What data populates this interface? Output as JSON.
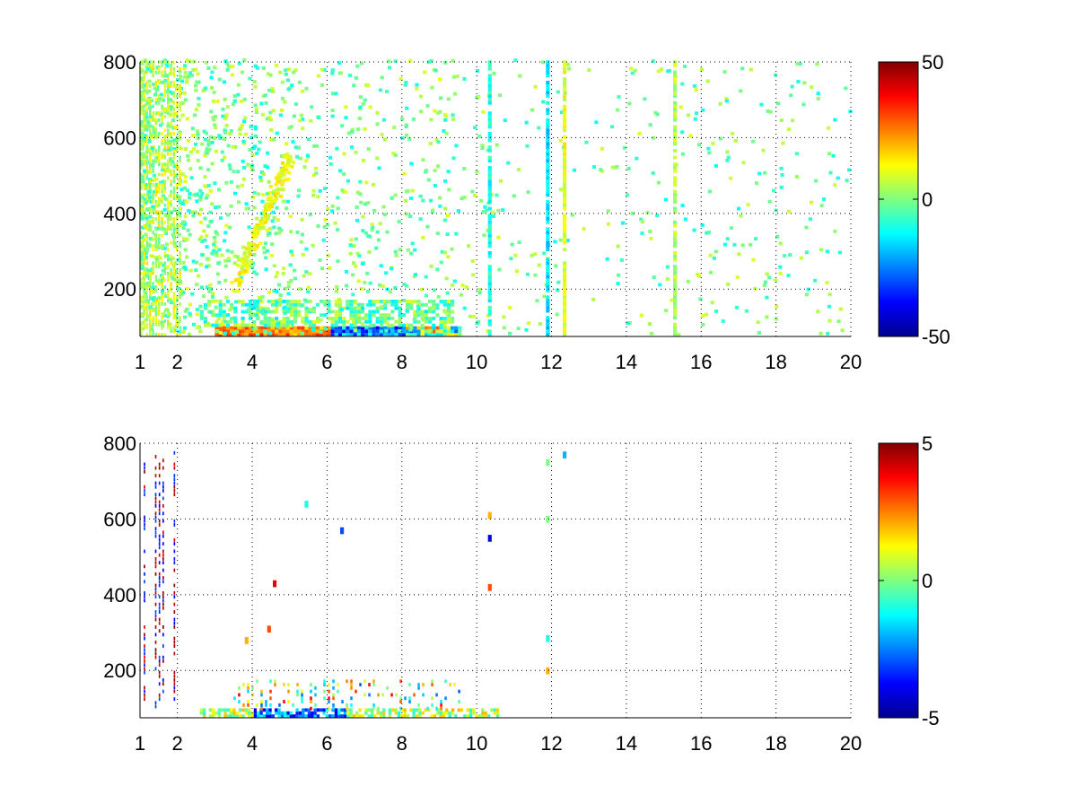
{
  "chart_data": [
    {
      "type": "heatmap",
      "title": "",
      "xlabel": "",
      "ylabel": "",
      "xlim": [
        1,
        20
      ],
      "ylim": [
        75,
        800
      ],
      "x_ticks": [
        1,
        2,
        4,
        6,
        8,
        10,
        12,
        14,
        16,
        18,
        20
      ],
      "x_tick_labels": [
        "1",
        "2",
        "4",
        "6",
        "8",
        "10",
        "12",
        "14",
        "16",
        "18",
        "20"
      ],
      "y_ticks": [
        200,
        400,
        600,
        800
      ],
      "y_tick_labels": [
        "200",
        "400",
        "600",
        "800"
      ],
      "grid": true,
      "colormap": "jet",
      "clim": [
        -50,
        50
      ],
      "colorbar_ticks": [
        -50,
        0,
        50
      ],
      "colorbar_tick_labels": [
        "-50",
        "0",
        "50"
      ],
      "description_values": {
        "dense_low_band": {
          "y_range": [
            75,
            100
          ],
          "x_range": [
            3,
            9.5
          ],
          "value_range": [
            -50,
            35
          ]
        },
        "stripes": [
          {
            "x": 10.3,
            "value": -10
          },
          {
            "x": 11.85,
            "value": -15
          },
          {
            "x": 15.25,
            "value": 5
          },
          {
            "x": 12.3,
            "value": 10
          }
        ]
      }
    },
    {
      "type": "heatmap",
      "title": "",
      "xlabel": "",
      "ylabel": "",
      "xlim": [
        1,
        20
      ],
      "ylim": [
        75,
        800
      ],
      "x_ticks": [
        1,
        2,
        4,
        6,
        8,
        10,
        12,
        14,
        16,
        18,
        20
      ],
      "x_tick_labels": [
        "1",
        "2",
        "4",
        "6",
        "8",
        "10",
        "12",
        "14",
        "16",
        "18",
        "20"
      ],
      "y_ticks": [
        200,
        400,
        600,
        800
      ],
      "y_tick_labels": [
        "200",
        "400",
        "600",
        "800"
      ],
      "grid": true,
      "colormap": "jet",
      "clim": [
        -5,
        5
      ],
      "colorbar_ticks": [
        -5,
        0,
        5
      ],
      "colorbar_tick_labels": [
        "-5",
        "0",
        "5"
      ],
      "points": [
        {
          "x": 4.4,
          "y": 300,
          "value": 3
        },
        {
          "x": 4.55,
          "y": 420,
          "value": 4
        },
        {
          "x": 3.8,
          "y": 270,
          "value": 2
        },
        {
          "x": 6.35,
          "y": 560,
          "value": -3
        },
        {
          "x": 5.4,
          "y": 630,
          "value": -1
        },
        {
          "x": 10.3,
          "y": 410,
          "value": 3
        },
        {
          "x": 10.3,
          "y": 600,
          "value": 2
        },
        {
          "x": 10.3,
          "y": 540,
          "value": -4
        },
        {
          "x": 11.85,
          "y": 740,
          "value": 0
        },
        {
          "x": 11.85,
          "y": 590,
          "value": 0
        },
        {
          "x": 11.85,
          "y": 275,
          "value": -1
        },
        {
          "x": 11.85,
          "y": 190,
          "value": 2
        },
        {
          "x": 12.3,
          "y": 760,
          "value": -2
        }
      ]
    }
  ]
}
